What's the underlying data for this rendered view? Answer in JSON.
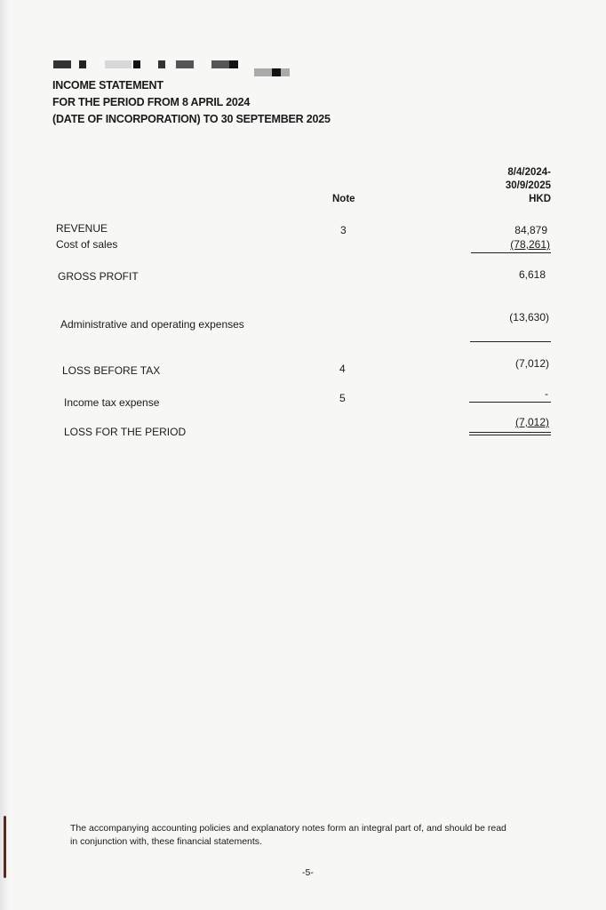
{
  "header": {
    "title": "INCOME STATEMENT",
    "subtitle_line1": "FOR THE PERIOD FROM 8 APRIL 2024",
    "subtitle_line2": "(DATE OF INCORPORATION) TO 30 SEPTEMBER 2025"
  },
  "columns": {
    "note": "Note",
    "period_line1": "8/4/2024-",
    "period_line2": "30/9/2025",
    "currency": "HKD"
  },
  "rows": [
    {
      "label": "REVENUE",
      "note": "3",
      "amount": "84,879"
    },
    {
      "label": "Cost of sales",
      "note": "",
      "amount": "(78,261)"
    },
    {
      "label": "GROSS PROFIT",
      "note": "",
      "amount": "6,618"
    },
    {
      "label": "Administrative and operating expenses",
      "note": "",
      "amount": "(13,630)"
    },
    {
      "label": "LOSS BEFORE TAX",
      "note": "4",
      "amount": "(7,012)"
    },
    {
      "label": "Income tax expense",
      "note": "5",
      "amount": "-"
    },
    {
      "label": "LOSS FOR THE PERIOD",
      "note": "",
      "amount": "(7,012)"
    }
  ],
  "footer": {
    "disclaimer_line1": "The accompanying accounting policies and explanatory notes form an integral part of, and should be read",
    "disclaimer_line2": "in conjunction with, these financial statements.",
    "page_number": "-5-"
  }
}
